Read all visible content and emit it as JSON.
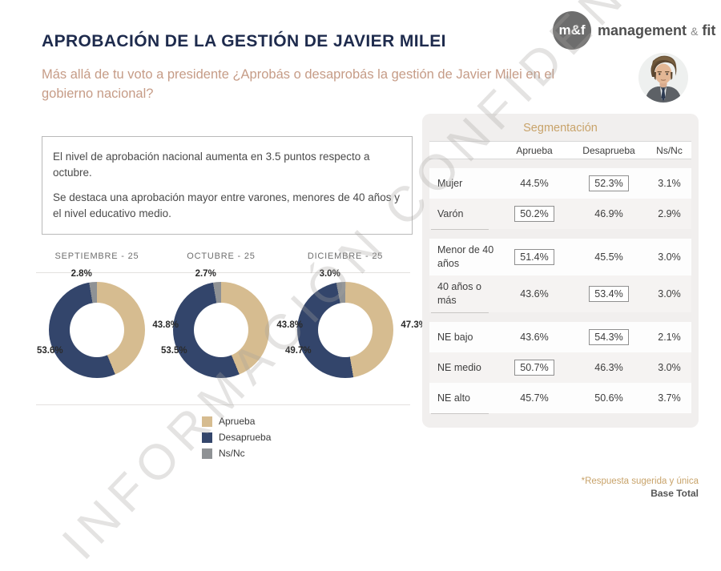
{
  "watermark": "INFORMACIÓN CONFIDENCIAL",
  "header": {
    "title": "APROBACIÓN DE LA GESTIÓN DE JAVIER MILEI",
    "question": "Más allá de tu voto a presidente ¿Aprobás o desaprobás la gestión de Javier Milei en el gobierno nacional?",
    "logo": {
      "badge": "m&f",
      "name": "management",
      "amp": "&",
      "name2": "fit"
    }
  },
  "insight_box": {
    "line1": "El nivel de aprobación nacional aumenta en 3.5 puntos respecto a octubre.",
    "line2": "Se destaca una aprobación mayor entre varones, menores de 40 años y el nivel educativo medio."
  },
  "colors": {
    "aprueba": "#d6bc90",
    "desaprueba": "#33456b",
    "nsnc": "#8f9295",
    "accent_gold": "#c8a36a",
    "title_navy": "#1e2b4d",
    "subtitle_rose": "#c69c87"
  },
  "chart_data": {
    "type": "pie",
    "variant": "donut",
    "legend": [
      "Aprueba",
      "Desaprueba",
      "Ns/Nc"
    ],
    "series": [
      {
        "label": "SEPTIEMBRE - 25",
        "aprueba": 43.8,
        "desaprueba": 53.6,
        "nsnc": 2.8
      },
      {
        "label": "OCTUBRE - 25",
        "aprueba": 43.8,
        "desaprueba": 53.5,
        "nsnc": 2.7
      },
      {
        "label": "DICIEMBRE - 25",
        "aprueba": 47.3,
        "desaprueba": 49.7,
        "nsnc": 3.0
      }
    ]
  },
  "segmentation": {
    "title": "Segmentación",
    "columns": [
      "Aprueba",
      "Desaprueba",
      "Ns/Nc"
    ],
    "groups": [
      {
        "rows": [
          {
            "label": "Mujer",
            "values": [
              "44.5%",
              "52.3%",
              "3.1%"
            ],
            "boxed": 1
          },
          {
            "label": "Varón",
            "values": [
              "50.2%",
              "46.9%",
              "2.9%"
            ],
            "boxed": 0
          }
        ]
      },
      {
        "rows": [
          {
            "label": "Menor de 40 años",
            "values": [
              "51.4%",
              "45.5%",
              "3.0%"
            ],
            "boxed": 0
          },
          {
            "label": "40 años o más",
            "values": [
              "43.6%",
              "53.4%",
              "3.0%"
            ],
            "boxed": 1
          }
        ]
      },
      {
        "rows": [
          {
            "label": "NE bajo",
            "values": [
              "43.6%",
              "54.3%",
              "2.1%"
            ],
            "boxed": 1
          },
          {
            "label": "NE medio",
            "values": [
              "50.7%",
              "46.3%",
              "3.0%"
            ],
            "boxed": 0
          },
          {
            "label": "NE alto",
            "values": [
              "45.7%",
              "50.6%",
              "3.7%"
            ],
            "boxed": -1
          }
        ]
      }
    ]
  },
  "footer": {
    "note": "*Respuesta sugerida y única",
    "base": "Base Total"
  }
}
